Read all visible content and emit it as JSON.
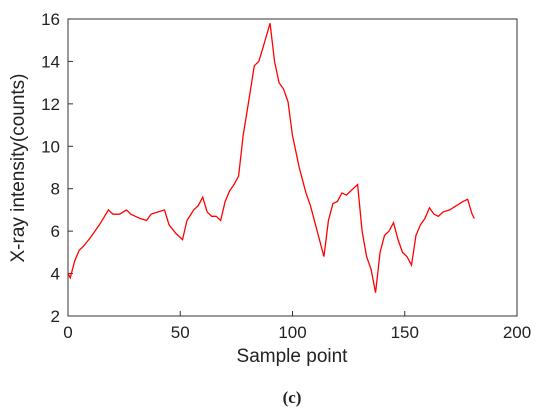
{
  "chart_data": {
    "type": "line",
    "xlabel": "Sample point",
    "ylabel": "X-ray intensity(counts)",
    "caption": "(c)",
    "color": "#ff0000",
    "x": [
      0,
      1,
      3,
      5,
      7,
      10,
      14,
      18,
      20,
      23,
      26,
      28,
      32,
      35,
      37,
      40,
      43,
      45,
      48,
      51,
      53,
      56,
      58,
      60,
      62,
      64,
      66,
      68,
      70,
      72,
      74,
      76,
      78,
      80,
      83,
      85,
      87,
      90,
      92,
      94,
      96,
      98,
      100,
      103,
      106,
      108,
      111,
      114,
      116,
      118,
      120,
      122,
      124,
      126,
      129,
      131,
      133,
      135,
      137,
      139,
      141,
      143,
      145,
      147,
      149,
      151,
      153,
      155,
      157,
      159,
      161,
      163,
      165,
      167,
      170,
      173,
      176,
      178,
      180,
      181
    ],
    "values": [
      4.0,
      3.8,
      4.6,
      5.1,
      5.3,
      5.7,
      6.3,
      7.0,
      6.8,
      6.8,
      7.0,
      6.8,
      6.6,
      6.5,
      6.8,
      6.9,
      7.0,
      6.3,
      5.9,
      5.6,
      6.5,
      7.0,
      7.2,
      7.6,
      6.9,
      6.7,
      6.7,
      6.5,
      7.4,
      7.9,
      8.2,
      8.6,
      10.5,
      11.8,
      13.8,
      14.0,
      14.7,
      15.8,
      14.0,
      13.0,
      12.7,
      12.1,
      10.5,
      9.0,
      7.8,
      7.2,
      6.0,
      4.8,
      6.5,
      7.3,
      7.4,
      7.8,
      7.7,
      7.9,
      8.2,
      6.0,
      4.8,
      4.2,
      3.1,
      5.0,
      5.8,
      6.0,
      6.4,
      5.6,
      5.0,
      4.8,
      4.4,
      5.8,
      6.3,
      6.6,
      7.1,
      6.8,
      6.7,
      6.9,
      7.0,
      7.2,
      7.4,
      7.5,
      6.8,
      6.6
    ],
    "xlim": [
      0,
      200
    ],
    "xticks": [
      0,
      50,
      100,
      150,
      200
    ],
    "ylim": [
      2,
      16
    ],
    "yticks": [
      2,
      4,
      6,
      8,
      10,
      12,
      14,
      16
    ],
    "grid": false
  }
}
